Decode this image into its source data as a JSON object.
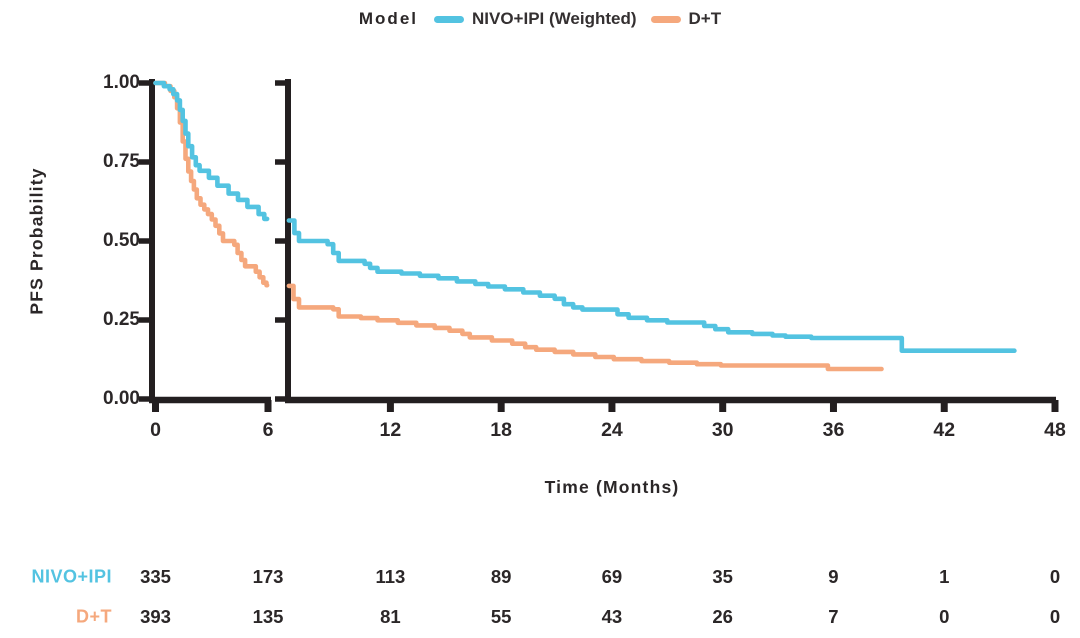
{
  "chart_data": {
    "type": "line",
    "subtype": "kaplan-meier-step-curve-with-broken-x-axis",
    "legend_title": "Model",
    "ylabel": "PFS Probability",
    "xlabel": "Time (Months)",
    "axis_color": "#231f20",
    "ylim": [
      0,
      1
    ],
    "yticks": [
      {
        "label": "1.00",
        "v": 1.0
      },
      {
        "label": "0.75",
        "v": 0.75
      },
      {
        "label": "0.50",
        "v": 0.5
      },
      {
        "label": "0.25",
        "v": 0.25
      },
      {
        "label": "0.00",
        "v": 0.0
      }
    ],
    "left_panel": {
      "domain": [
        0,
        6
      ],
      "ticks": [
        {
          "label": "0",
          "m": 0
        },
        {
          "label": "6",
          "m": 6
        }
      ]
    },
    "right_panel": {
      "domain": [
        6.48,
        48
      ],
      "ticks": [
        {
          "label": "12",
          "m": 12
        },
        {
          "label": "18",
          "m": 18
        },
        {
          "label": "24",
          "m": 24
        },
        {
          "label": "30",
          "m": 30
        },
        {
          "label": "36",
          "m": 36
        },
        {
          "label": "42",
          "m": 42
        },
        {
          "label": "48",
          "m": 48
        }
      ]
    },
    "series": [
      {
        "name": "NIVO+IPI (Weighted)",
        "short_name": "NIVO+IPI",
        "color": "#53c3e1",
        "left_steps": [
          [
            0,
            1.0
          ],
          [
            0.45,
            0.99
          ],
          [
            0.75,
            0.98
          ],
          [
            0.95,
            0.965
          ],
          [
            1.15,
            0.945
          ],
          [
            1.3,
            0.915
          ],
          [
            1.45,
            0.88
          ],
          [
            1.6,
            0.84
          ],
          [
            1.75,
            0.8
          ],
          [
            1.95,
            0.765
          ],
          [
            2.15,
            0.74
          ],
          [
            2.35,
            0.722
          ],
          [
            2.85,
            0.7
          ],
          [
            3.3,
            0.675
          ],
          [
            3.9,
            0.65
          ],
          [
            4.4,
            0.63
          ],
          [
            4.9,
            0.608
          ],
          [
            5.5,
            0.585
          ],
          [
            5.8,
            0.57
          ]
        ],
        "left_end": 5.95,
        "right_steps": [
          [
            6.5,
            0.565
          ],
          [
            6.8,
            0.525
          ],
          [
            7.05,
            0.5
          ],
          [
            8.6,
            0.49
          ],
          [
            8.9,
            0.462
          ],
          [
            9.2,
            0.437
          ],
          [
            10.6,
            0.428
          ],
          [
            10.9,
            0.415
          ],
          [
            11.3,
            0.403
          ],
          [
            12.6,
            0.397
          ],
          [
            13.6,
            0.39
          ],
          [
            14.6,
            0.382
          ],
          [
            15.6,
            0.372
          ],
          [
            16.6,
            0.364
          ],
          [
            17.3,
            0.356
          ],
          [
            18.2,
            0.347
          ],
          [
            19.2,
            0.337
          ],
          [
            20.1,
            0.327
          ],
          [
            20.9,
            0.317
          ],
          [
            21.4,
            0.3
          ],
          [
            21.9,
            0.29
          ],
          [
            22.4,
            0.283
          ],
          [
            24.3,
            0.268
          ],
          [
            24.9,
            0.257
          ],
          [
            25.9,
            0.249
          ],
          [
            27.0,
            0.242
          ],
          [
            29.0,
            0.231
          ],
          [
            29.6,
            0.221
          ],
          [
            30.3,
            0.211
          ],
          [
            31.6,
            0.206
          ],
          [
            32.7,
            0.201
          ],
          [
            33.4,
            0.197
          ],
          [
            34.8,
            0.193
          ],
          [
            39.7,
            0.153
          ]
        ],
        "right_end": 45.8
      },
      {
        "name": "D+T",
        "short_name": "D+T",
        "color": "#f5a87d",
        "left_steps": [
          [
            0,
            1.0
          ],
          [
            0.5,
            0.99
          ],
          [
            0.8,
            0.975
          ],
          [
            1.0,
            0.955
          ],
          [
            1.15,
            0.92
          ],
          [
            1.3,
            0.875
          ],
          [
            1.45,
            0.815
          ],
          [
            1.6,
            0.76
          ],
          [
            1.75,
            0.72
          ],
          [
            1.9,
            0.69
          ],
          [
            2.05,
            0.663
          ],
          [
            2.2,
            0.635
          ],
          [
            2.4,
            0.615
          ],
          [
            2.6,
            0.6
          ],
          [
            2.8,
            0.585
          ],
          [
            3.0,
            0.568
          ],
          [
            3.2,
            0.548
          ],
          [
            3.4,
            0.524
          ],
          [
            3.6,
            0.5
          ],
          [
            4.2,
            0.488
          ],
          [
            4.38,
            0.462
          ],
          [
            4.58,
            0.44
          ],
          [
            4.78,
            0.42
          ],
          [
            5.35,
            0.403
          ],
          [
            5.55,
            0.385
          ],
          [
            5.75,
            0.368
          ],
          [
            5.92,
            0.36
          ]
        ],
        "left_end": 5.95,
        "right_steps": [
          [
            6.5,
            0.358
          ],
          [
            6.75,
            0.316
          ],
          [
            7.05,
            0.29
          ],
          [
            8.9,
            0.284
          ],
          [
            9.2,
            0.261
          ],
          [
            10.4,
            0.256
          ],
          [
            11.3,
            0.249
          ],
          [
            12.4,
            0.241
          ],
          [
            13.4,
            0.233
          ],
          [
            14.4,
            0.225
          ],
          [
            15.2,
            0.216
          ],
          [
            15.9,
            0.206
          ],
          [
            16.3,
            0.195
          ],
          [
            17.5,
            0.185
          ],
          [
            18.6,
            0.175
          ],
          [
            19.3,
            0.164
          ],
          [
            19.9,
            0.156
          ],
          [
            20.9,
            0.149
          ],
          [
            21.9,
            0.141
          ],
          [
            23.1,
            0.133
          ],
          [
            24.1,
            0.126
          ],
          [
            25.6,
            0.12
          ],
          [
            27.1,
            0.115
          ],
          [
            28.6,
            0.11
          ],
          [
            29.9,
            0.106
          ],
          [
            35.7,
            0.095
          ]
        ],
        "right_end": 38.6
      }
    ]
  },
  "risk_table": {
    "columns_months": [
      0,
      6,
      12,
      18,
      24,
      30,
      36,
      42,
      48
    ],
    "rows": [
      {
        "label": "NIVO+IPI",
        "color": "#53c3e1",
        "values": [
          "335",
          "173",
          "113",
          "89",
          "69",
          "35",
          "9",
          "1",
          "0"
        ]
      },
      {
        "label": "D+T",
        "color": "#f5a87d",
        "values": [
          "393",
          "135",
          "81",
          "55",
          "43",
          "26",
          "7",
          "0",
          "0"
        ]
      }
    ]
  }
}
